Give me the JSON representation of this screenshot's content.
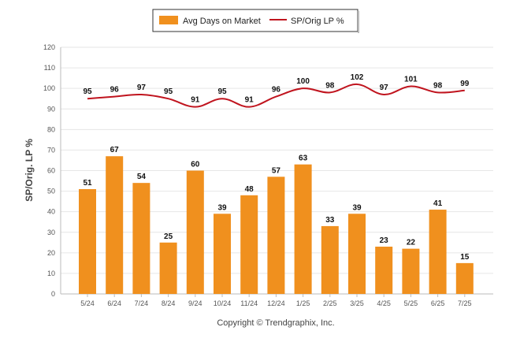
{
  "chart_data": {
    "type": "bar",
    "categories": [
      "5/24",
      "6/24",
      "7/24",
      "8/24",
      "9/24",
      "10/24",
      "11/24",
      "12/24",
      "1/25",
      "2/25",
      "3/25",
      "4/25",
      "5/25",
      "6/25",
      "7/25"
    ],
    "series": [
      {
        "name": "Avg Days on Market",
        "type": "bar",
        "color": "#F0901E",
        "values": [
          51,
          67,
          54,
          25,
          60,
          39,
          48,
          57,
          63,
          33,
          39,
          23,
          22,
          41,
          15
        ]
      },
      {
        "name": "SP/Orig LP %",
        "type": "line",
        "color": "#C0141E",
        "values": [
          95,
          96,
          97,
          95,
          91,
          95,
          91,
          96,
          100,
          98,
          102,
          97,
          101,
          98,
          99
        ]
      }
    ],
    "xlabel": "",
    "ylabel": "SP/Orig. LP %",
    "ylim": [
      0,
      120
    ],
    "yticks": [
      0,
      10,
      20,
      30,
      40,
      50,
      60,
      70,
      80,
      90,
      100,
      110,
      120
    ],
    "grid": true,
    "legend_position": "top-center"
  },
  "footer": {
    "copyright": "Copyright © Trendgraphix, Inc."
  }
}
